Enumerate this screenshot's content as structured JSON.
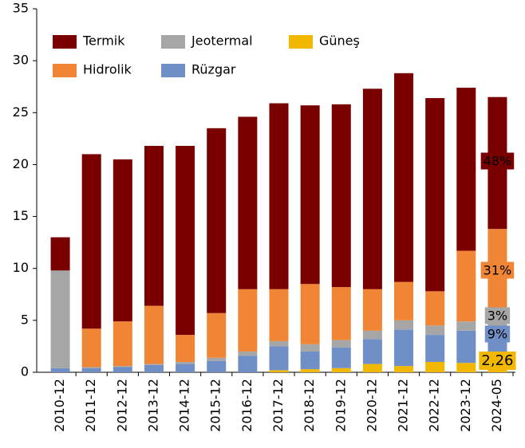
{
  "chart_data": {
    "type": "stacked_bar",
    "categories": [
      "2010-12",
      "2011-12",
      "2012-12",
      "2013-12",
      "2014-12",
      "2015-12",
      "2016-12",
      "2017-12",
      "2018-12",
      "2019-12",
      "2020-12",
      "2021-12",
      "2022-12",
      "2023-12",
      "2024-05"
    ],
    "series": [
      {
        "name": "Güneş",
        "color": "#f2b800",
        "values": [
          0,
          0,
          0,
          0,
          0,
          0,
          0,
          0.2,
          0.3,
          0.4,
          0.8,
          0.6,
          1.0,
          0.9,
          0.6
        ],
        "last_label": "2,26"
      },
      {
        "name": "Rüzgar",
        "color": "#6f8fc6",
        "values": [
          0.4,
          0.4,
          0.5,
          0.7,
          0.8,
          1.1,
          1.6,
          2.3,
          1.7,
          2.0,
          2.4,
          3.5,
          2.6,
          3.1,
          3.3
        ],
        "last_label": "9%"
      },
      {
        "name": "Jeotermal",
        "color": "#a6a6a6",
        "values": [
          9.4,
          0.1,
          0.1,
          0.1,
          0.2,
          0.3,
          0.4,
          0.5,
          0.7,
          0.7,
          0.8,
          0.9,
          0.9,
          0.9,
          0.8
        ],
        "last_label": "3%"
      },
      {
        "name": "Hidrolik",
        "color": "#ef8535",
        "values": [
          0,
          3.7,
          4.3,
          5.6,
          2.6,
          4.3,
          6.0,
          5.0,
          5.8,
          5.1,
          4.0,
          3.7,
          3.3,
          6.8,
          9.1
        ],
        "last_label": "31%"
      },
      {
        "name": "Termik",
        "color": "#7a0000",
        "values": [
          3.2,
          16.8,
          15.6,
          15.4,
          18.2,
          17.8,
          16.6,
          17.9,
          17.2,
          17.6,
          19.3,
          20.1,
          18.6,
          15.7,
          12.7
        ],
        "last_label": "48%"
      }
    ],
    "ylim": [
      0,
      35
    ],
    "yticks": [
      0,
      5,
      10,
      15,
      20,
      25,
      30,
      35
    ],
    "legend": "upper left"
  }
}
